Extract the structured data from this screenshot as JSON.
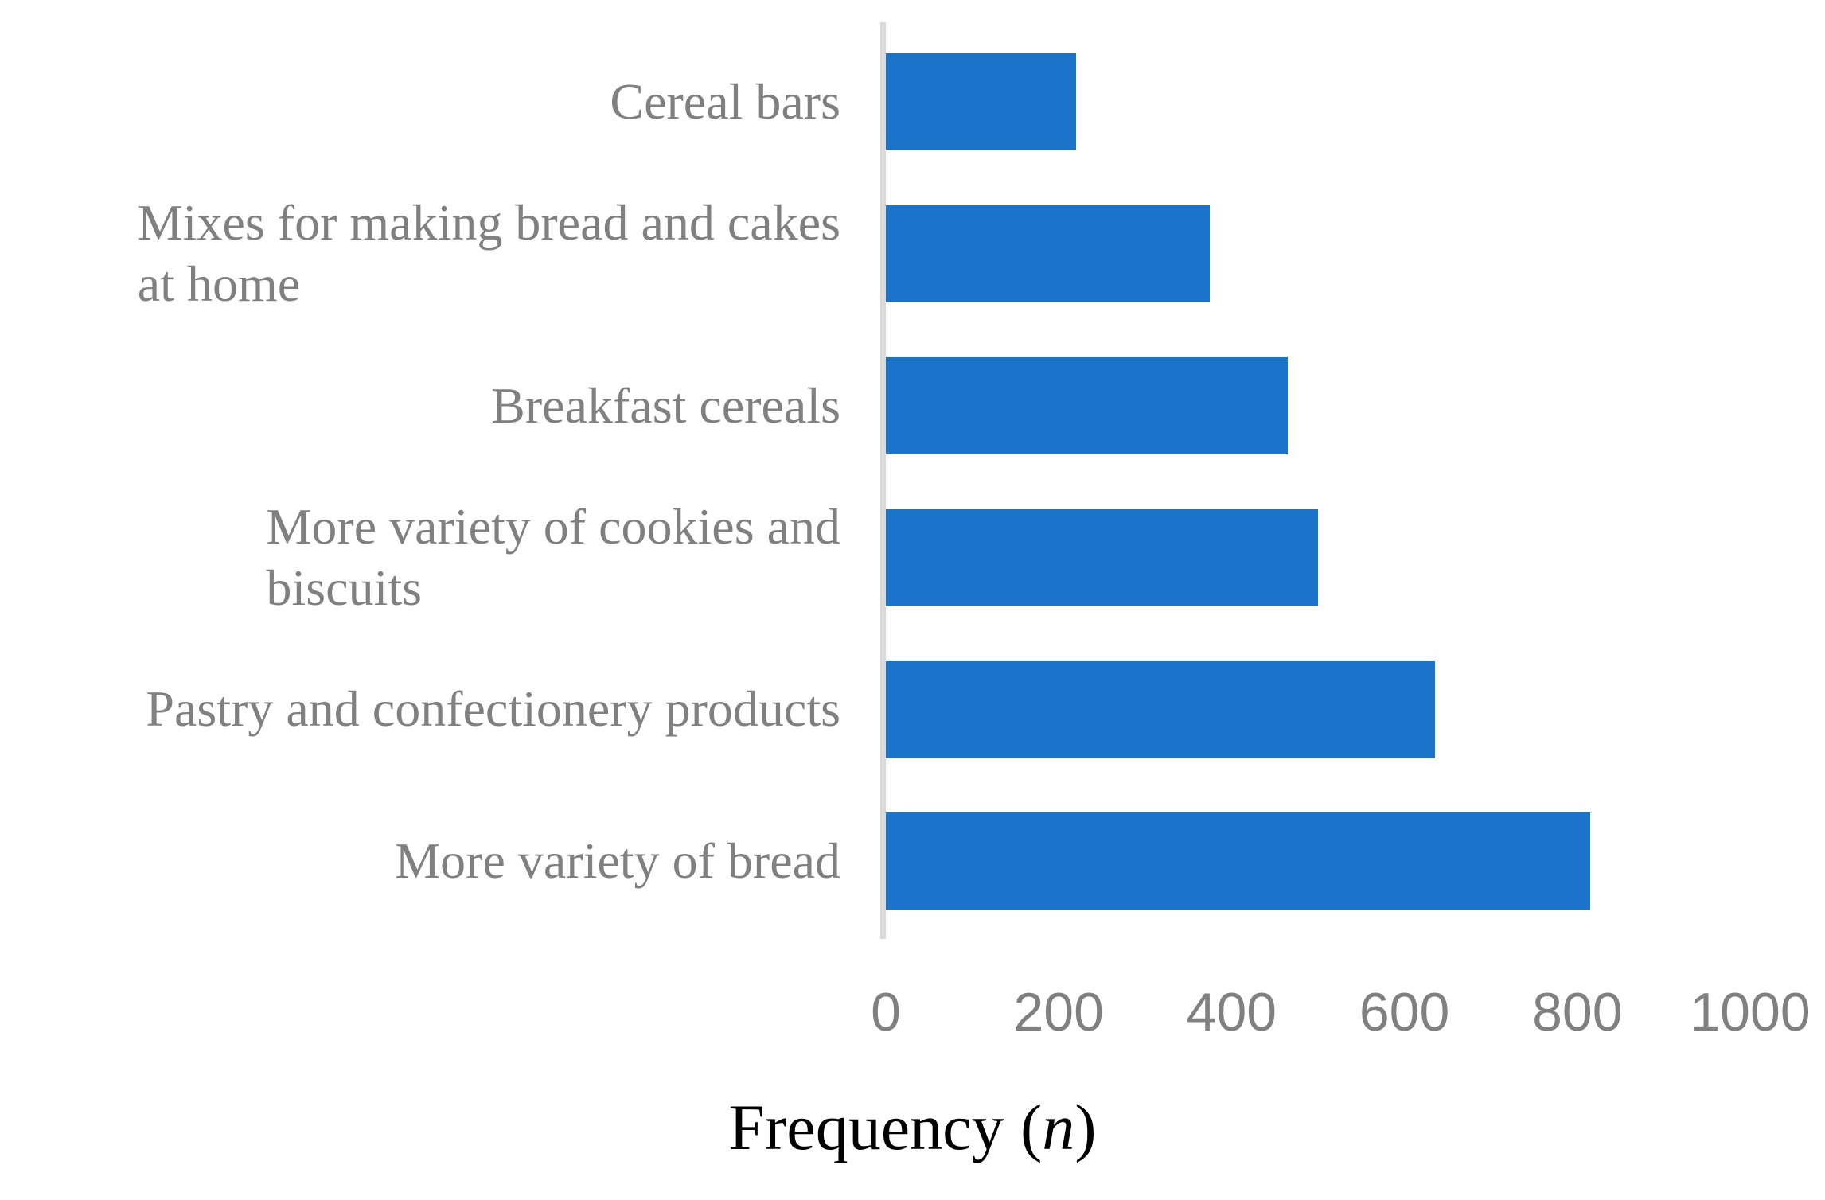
{
  "chart_data": {
    "type": "bar",
    "orientation": "horizontal",
    "title": "",
    "categories": [
      "Cereal bars",
      "Mixes for making bread and cakes at home",
      "Breakfast cereals",
      "More variety of cookies and biscuits",
      "Pastry and confectionery products",
      "More variety of bread"
    ],
    "category_lines": [
      [
        "Cereal bars"
      ],
      [
        "Mixes for making bread and cakes",
        "at home"
      ],
      [
        "Breakfast cereals"
      ],
      [
        "More variety of cookies and",
        "biscuits"
      ],
      [
        "Pastry and confectionery products"
      ],
      [
        "More variety of bread"
      ]
    ],
    "values": [
      220,
      375,
      465,
      500,
      635,
      815
    ],
    "xlabel": "Frequency (n)",
    "xlabel_parts": {
      "prefix": "Frequency (",
      "variable": "n",
      "suffix": ")"
    },
    "x_ticks": [
      0,
      200,
      400,
      600,
      800,
      1000
    ],
    "xlim": [
      0,
      1000
    ],
    "grid": false,
    "legend": "none",
    "colors": {
      "bar": "#1B74C9",
      "axis_line": "#D9D9D9",
      "tick_label": "#808080",
      "category_label": "#808080",
      "axis_title": "#000000"
    }
  }
}
